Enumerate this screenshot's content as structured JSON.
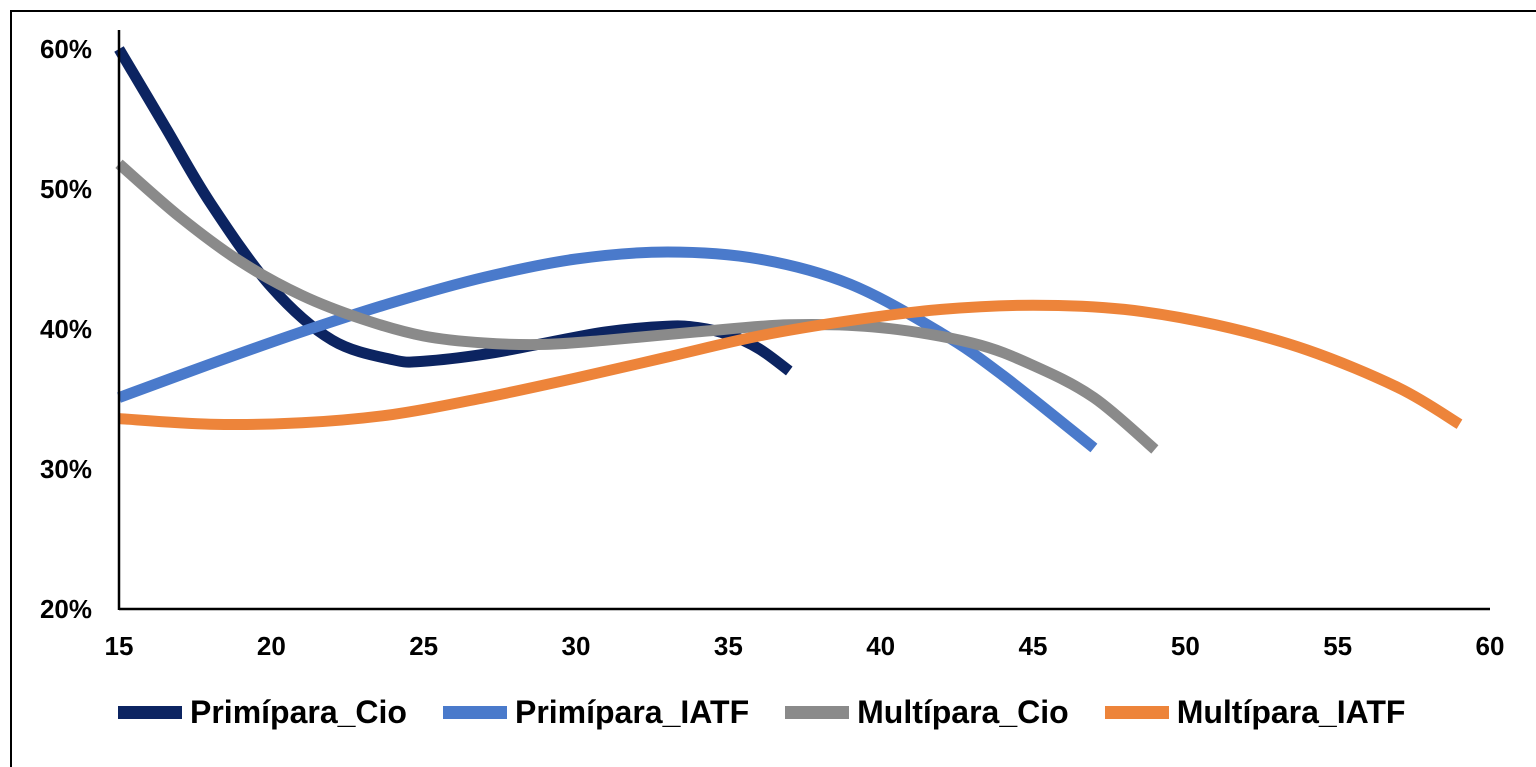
{
  "chart_data": {
    "type": "line",
    "title": "",
    "xlabel": "",
    "ylabel": "",
    "xlim": [
      15,
      60
    ],
    "ylim": [
      0.2,
      0.6
    ],
    "x_ticks": [
      15,
      20,
      25,
      30,
      35,
      40,
      45,
      50,
      55,
      60
    ],
    "y_ticks": [
      0.2,
      0.3,
      0.4,
      0.5,
      0.6
    ],
    "x_tick_labels": [
      "15",
      "20",
      "25",
      "30",
      "35",
      "40",
      "45",
      "50",
      "55",
      "60"
    ],
    "y_tick_labels": [
      "20%",
      "30%",
      "40%",
      "50%",
      "60%"
    ],
    "grid": false,
    "legend_position": "bottom",
    "series": [
      {
        "name": "Primípara_Cio",
        "color": "#0c2461",
        "x": [
          15,
          16.5,
          18,
          20,
          22,
          24,
          25,
          27,
          29,
          31,
          33,
          34,
          35,
          36,
          37
        ],
        "y": [
          0.6,
          0.545,
          0.49,
          0.43,
          0.392,
          0.378,
          0.377,
          0.382,
          0.39,
          0.398,
          0.402,
          0.401,
          0.396,
          0.386,
          0.37
        ]
      },
      {
        "name": "Primípara_IATF",
        "color": "#4a7acb",
        "x": [
          15,
          18,
          21,
          24,
          27,
          30,
          33,
          36,
          39,
          42,
          44,
          47
        ],
        "y": [
          0.351,
          0.375,
          0.398,
          0.419,
          0.437,
          0.45,
          0.455,
          0.45,
          0.432,
          0.397,
          0.367,
          0.315
        ]
      },
      {
        "name": "Multípara_Cio",
        "color": "#8a8a8a",
        "x": [
          15,
          17,
          19,
          21,
          23,
          25,
          27,
          29,
          31,
          34,
          37,
          40,
          43,
          45,
          47,
          49
        ],
        "y": [
          0.518,
          0.48,
          0.448,
          0.424,
          0.407,
          0.395,
          0.39,
          0.389,
          0.392,
          0.398,
          0.403,
          0.401,
          0.39,
          0.374,
          0.351,
          0.314
        ]
      },
      {
        "name": "Multípara_IATF",
        "color": "#ed843a",
        "x": [
          15,
          18,
          21,
          24,
          27,
          30,
          33,
          36,
          39,
          42,
          45,
          48,
          51,
          54,
          57,
          59
        ],
        "y": [
          0.336,
          0.332,
          0.333,
          0.339,
          0.351,
          0.365,
          0.38,
          0.395,
          0.406,
          0.414,
          0.417,
          0.414,
          0.403,
          0.385,
          0.358,
          0.332
        ]
      }
    ]
  }
}
